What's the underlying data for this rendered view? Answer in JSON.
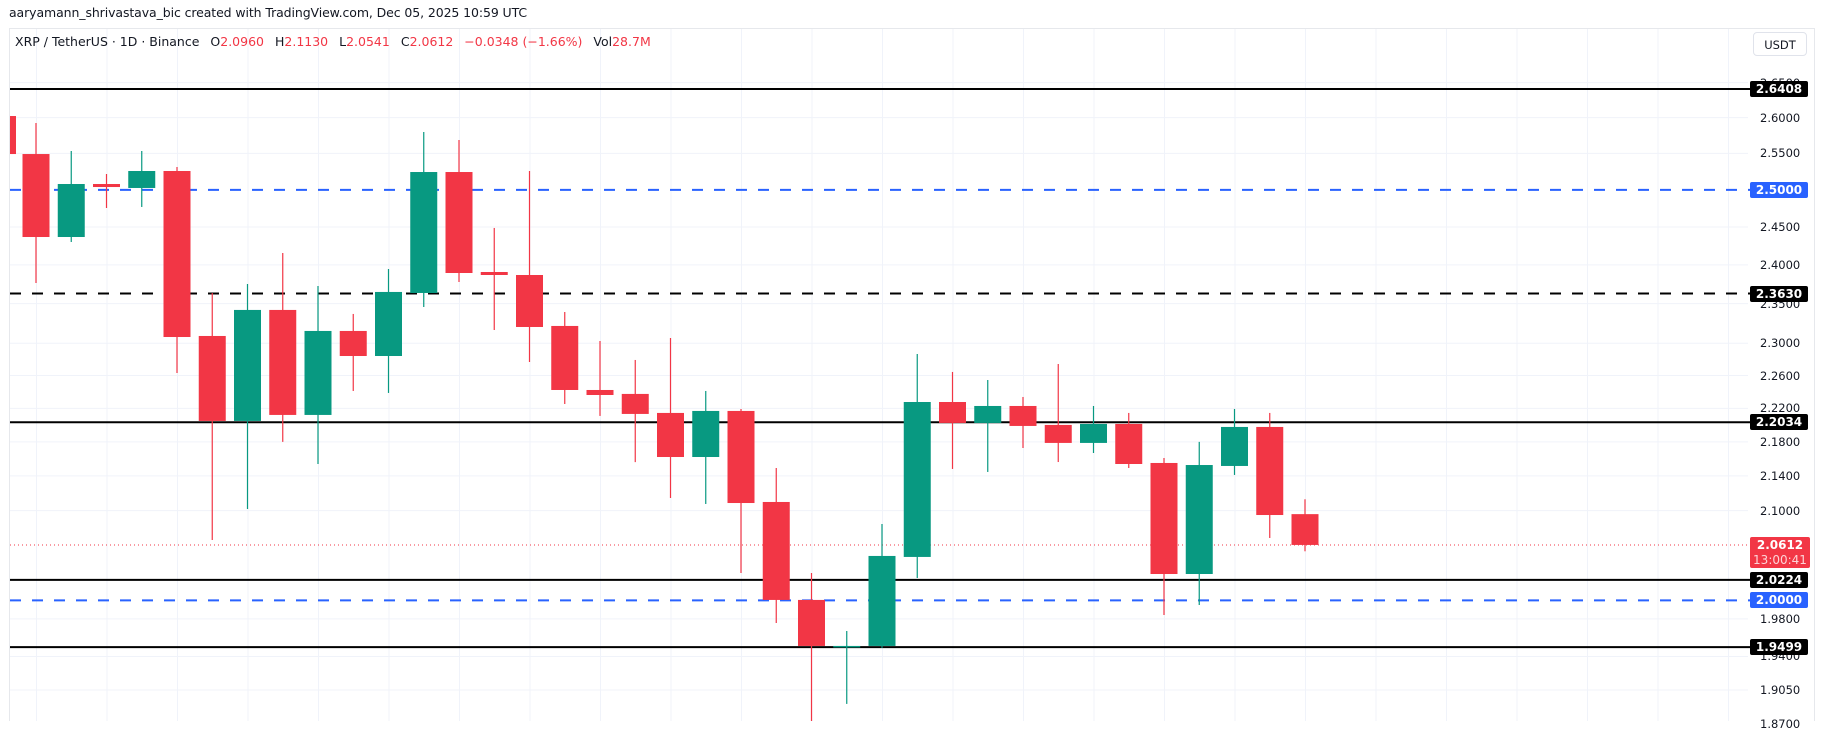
{
  "header": {
    "credit": "aaryamann_shrivastava_bic created with TradingView.com, Dec 05, 2025 10:59 UTC"
  },
  "legend": {
    "symbol": "XRP / TetherUS · 1D · Binance",
    "open_label": "O",
    "open": "2.0960",
    "high_label": "H",
    "high": "2.1130",
    "low_label": "L",
    "low": "2.0541",
    "close_label": "C",
    "close": "2.0612",
    "change": "−0.0348 (−1.66%)",
    "vol_label": "Vol",
    "vol": "28.7M"
  },
  "axis": {
    "currency_button": "USDT",
    "ticks": [
      "2.6500",
      "2.6000",
      "2.5500",
      "2.4500",
      "2.4000",
      "2.3500",
      "2.3000",
      "2.2600",
      "2.2200",
      "2.1800",
      "2.1400",
      "2.1000",
      "1.9800",
      "1.9400",
      "1.9050",
      "1.8700"
    ],
    "current_price": "2.0612",
    "countdown": "13:00:41"
  },
  "levels": [
    {
      "value": "2.6408",
      "style": "solid",
      "color": "#000000"
    },
    {
      "value": "2.5000",
      "style": "dashed",
      "color": "#2962ff"
    },
    {
      "value": "2.3630",
      "style": "dashed",
      "color": "#000000"
    },
    {
      "value": "2.2034",
      "style": "solid",
      "color": "#000000"
    },
    {
      "value": "2.0224",
      "style": "solid",
      "color": "#000000"
    },
    {
      "value": "2.0000",
      "style": "dashed",
      "color": "#2962ff"
    },
    {
      "value": "1.9499",
      "style": "solid",
      "color": "#000000"
    }
  ],
  "colors": {
    "up": "#089981",
    "down": "#f23645",
    "grid": "#f0f3fa",
    "level_blue": "#2962ff",
    "current_price_line": "#f23645"
  },
  "chart_data": {
    "type": "candlestick",
    "title": "XRP / TetherUS · 1D · Binance",
    "xlabel": "",
    "ylabel": "USDT",
    "yscale": "log",
    "ylim": [
      1.87,
      2.68
    ],
    "grid": true,
    "current_price": 2.0612,
    "horizontal_levels": [
      2.6408,
      2.5,
      2.363,
      2.2034,
      2.0224,
      2.0,
      1.9499
    ],
    "candles": [
      {
        "o": 2.6023,
        "h": 2.6023,
        "l": 2.5491,
        "c": 2.5491
      },
      {
        "o": 2.5491,
        "h": 2.5925,
        "l": 2.3766,
        "c": 2.4367
      },
      {
        "o": 2.4367,
        "h": 2.5533,
        "l": 2.4301,
        "c": 2.5079
      },
      {
        "o": 2.5079,
        "h": 2.5216,
        "l": 2.4754,
        "c": 2.5038
      },
      {
        "o": 2.5025,
        "h": 2.5533,
        "l": 2.4768,
        "c": 2.5257
      },
      {
        "o": 2.5257,
        "h": 2.5312,
        "l": 2.2631,
        "c": 2.3078
      },
      {
        "o": 2.3091,
        "h": 2.3637,
        "l": 2.0668,
        "c": 2.2049
      },
      {
        "o": 2.2049,
        "h": 2.3753,
        "l": 2.1019,
        "c": 2.342
      },
      {
        "o": 2.342,
        "h": 2.4156,
        "l": 2.1799,
        "c": 2.2121
      },
      {
        "o": 2.2121,
        "h": 2.3727,
        "l": 2.1539,
        "c": 2.3154
      },
      {
        "o": 2.3154,
        "h": 2.3369,
        "l": 2.2411,
        "c": 2.2841
      },
      {
        "o": 2.2841,
        "h": 2.3947,
        "l": 2.2387,
        "c": 2.365
      },
      {
        "o": 2.3637,
        "h": 2.5798,
        "l": 2.3458,
        "c": 2.5243
      },
      {
        "o": 2.5243,
        "h": 2.5686,
        "l": 2.3779,
        "c": 2.3895
      },
      {
        "o": 2.3908,
        "h": 2.4487,
        "l": 2.3166,
        "c": 2.3869
      },
      {
        "o": 2.3869,
        "h": 2.5257,
        "l": 2.2767,
        "c": 2.3204
      },
      {
        "o": 2.3217,
        "h": 2.3394,
        "l": 2.2253,
        "c": 2.2423
      },
      {
        "o": 2.2423,
        "h": 2.3028,
        "l": 2.2109,
        "c": 2.2362
      },
      {
        "o": 2.2375,
        "h": 2.2792,
        "l": 2.1561,
        "c": 2.2133
      },
      {
        "o": 2.2145,
        "h": 2.3066,
        "l": 2.1145,
        "c": 2.1621
      },
      {
        "o": 2.1621,
        "h": 2.2411,
        "l": 2.1076,
        "c": 2.2169
      },
      {
        "o": 2.2169,
        "h": 2.2193,
        "l": 2.03,
        "c": 2.1087
      },
      {
        "o": 2.1099,
        "h": 2.1492,
        "l": 1.9756,
        "c": 2.0005
      },
      {
        "o": 2.0005,
        "h": 2.03,
        "l": 1.8731,
        "c": 1.9511
      },
      {
        "o": 1.95,
        "h": 1.967,
        "l": 1.8906,
        "c": 1.9511
      },
      {
        "o": 1.9511,
        "h": 2.0848,
        "l": 1.949,
        "c": 2.0489
      },
      {
        "o": 2.0478,
        "h": 2.2866,
        "l": 2.0245,
        "c": 2.2277
      },
      {
        "o": 2.2277,
        "h": 2.2644,
        "l": 2.1481,
        "c": 2.2025
      },
      {
        "o": 2.2025,
        "h": 2.2545,
        "l": 2.1446,
        "c": 2.2229
      },
      {
        "o": 2.2229,
        "h": 2.2338,
        "l": 2.1727,
        "c": 2.1989
      },
      {
        "o": 2.2001,
        "h": 2.2742,
        "l": 2.1562,
        "c": 2.1787
      },
      {
        "o": 2.1787,
        "h": 2.2229,
        "l": 2.1668,
        "c": 2.2013
      },
      {
        "o": 2.2013,
        "h": 2.2145,
        "l": 2.1492,
        "c": 2.1539
      },
      {
        "o": 2.1551,
        "h": 2.161,
        "l": 1.9842,
        "c": 2.0289
      },
      {
        "o": 2.0289,
        "h": 2.1799,
        "l": 1.995,
        "c": 2.1527
      },
      {
        "o": 2.1516,
        "h": 2.2193,
        "l": 2.1411,
        "c": 2.1977
      },
      {
        "o": 2.1977,
        "h": 2.2145,
        "l": 2.069,
        "c": 2.095
      },
      {
        "o": 2.096,
        "h": 2.113,
        "l": 2.0541,
        "c": 2.0612
      }
    ]
  }
}
